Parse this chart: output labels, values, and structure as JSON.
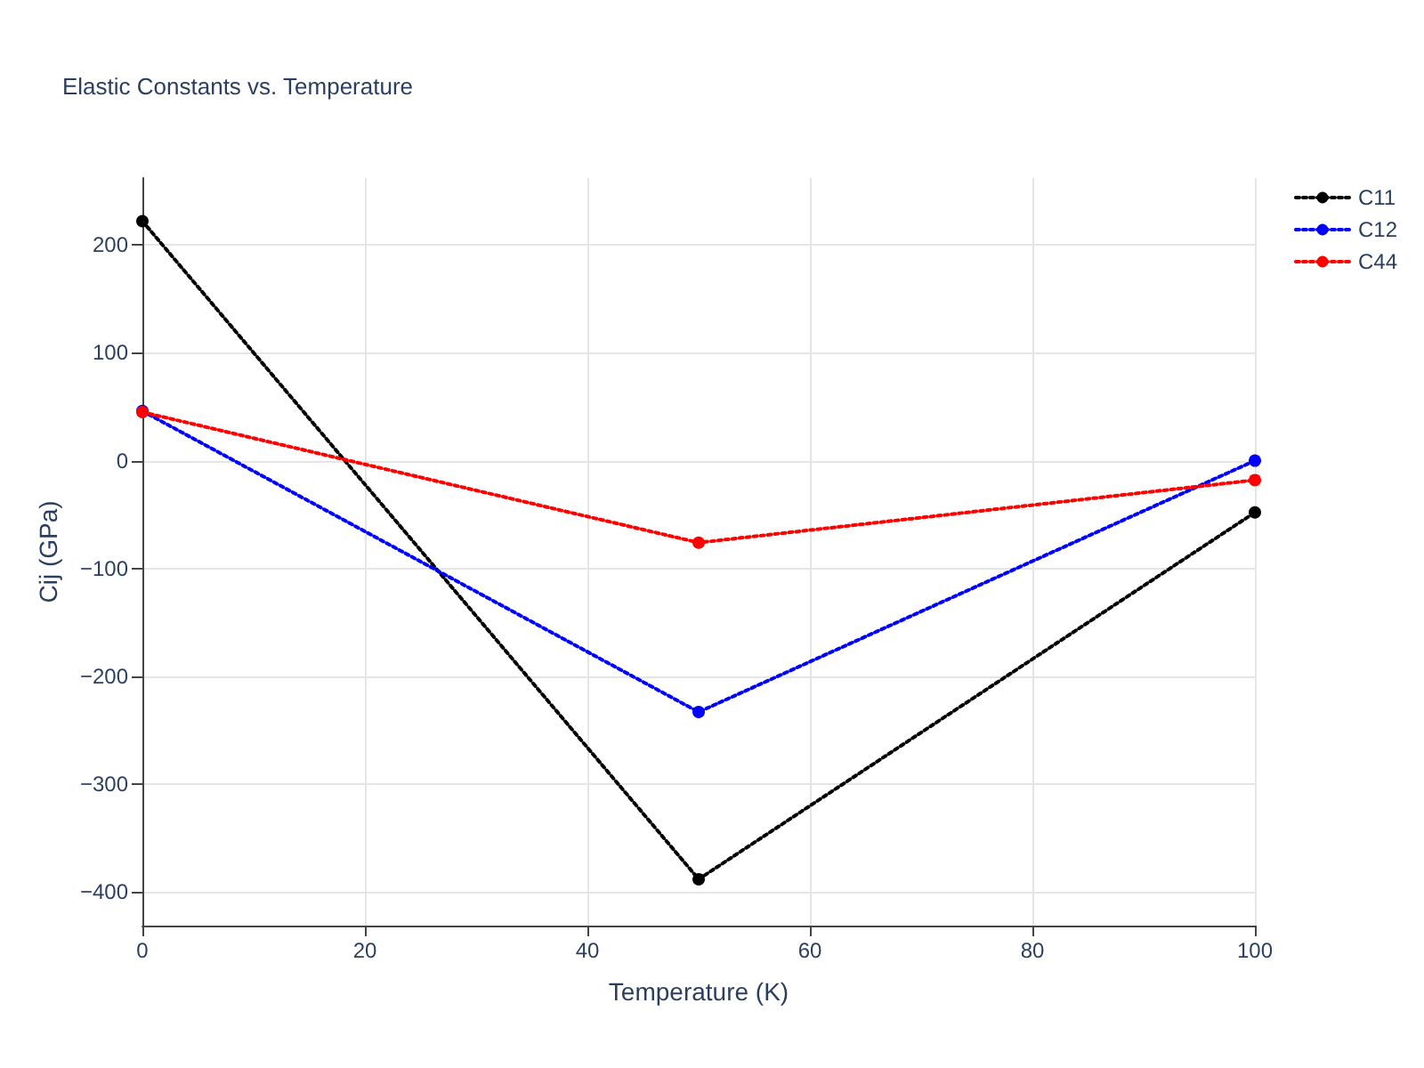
{
  "chart_data": {
    "type": "line",
    "title": "Elastic Constants vs. Temperature",
    "xlabel": "Temperature (K)",
    "ylabel": "Cij (GPa)",
    "x": [
      0,
      50,
      100
    ],
    "series": [
      {
        "name": "C11",
        "color": "#000000",
        "values": [
          222,
          -388,
          -48
        ]
      },
      {
        "name": "C12",
        "color": "#0000ff",
        "values": [
          46,
          -233,
          0
        ]
      },
      {
        "name": "C44",
        "color": "#ff0000",
        "values": [
          45,
          -76,
          -18
        ]
      }
    ],
    "xlim": [
      0,
      100
    ],
    "xticks": [
      0,
      20,
      40,
      60,
      80,
      100
    ],
    "ylim": [
      -431,
      262
    ],
    "yticks": [
      -400,
      -300,
      -200,
      -100,
      0,
      100,
      200
    ],
    "grid": true,
    "legend": "top right",
    "marker": "circle",
    "line_style": "dotted"
  }
}
